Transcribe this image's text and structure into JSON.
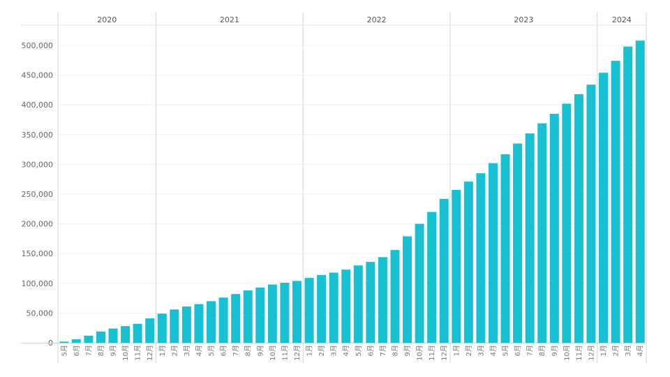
{
  "chart_data": {
    "type": "bar",
    "title": "",
    "xlabel": "",
    "ylabel": "",
    "ylim": [
      0,
      520000
    ],
    "yticks": [
      0,
      50000,
      100000,
      150000,
      200000,
      250000,
      300000,
      350000,
      400000,
      450000,
      500000
    ],
    "ytick_labels": [
      "0",
      "50,000",
      "100,000",
      "150,000",
      "200,000",
      "250,000",
      "300,000",
      "350,000",
      "400,000",
      "450,000",
      "500,000"
    ],
    "grid": true,
    "bar_color": "#17c1d1",
    "years": [
      {
        "label": "2020",
        "months": [
          "5月",
          "6月",
          "7月",
          "8月",
          "9月",
          "10月",
          "11月",
          "12月"
        ]
      },
      {
        "label": "2021",
        "months": [
          "1月",
          "2月",
          "3月",
          "4月",
          "5月",
          "6月",
          "7月",
          "8月",
          "9月",
          "10月",
          "11月",
          "12月"
        ]
      },
      {
        "label": "2022",
        "months": [
          "1月",
          "2月",
          "3月",
          "4月",
          "5月",
          "6月",
          "7月",
          "8月",
          "9月",
          "10月",
          "11月",
          "12月"
        ]
      },
      {
        "label": "2023",
        "months": [
          "1月",
          "2月",
          "3月",
          "4月",
          "5月",
          "6月",
          "7月",
          "8月",
          "9月",
          "10月",
          "11月",
          "12月"
        ]
      },
      {
        "label": "2024",
        "months": [
          "1月",
          "2月",
          "3月",
          "4月"
        ]
      }
    ],
    "values": [
      2000,
      6000,
      12000,
      19000,
      24000,
      28000,
      32000,
      41000,
      49000,
      56000,
      61000,
      65000,
      70000,
      76000,
      82000,
      88000,
      93000,
      98000,
      101000,
      104000,
      109000,
      114000,
      118000,
      123000,
      130000,
      136000,
      144000,
      156000,
      179000,
      200000,
      220000,
      242000,
      257000,
      271000,
      285000,
      302000,
      317000,
      335000,
      352000,
      369000,
      385000,
      402000,
      418000,
      434000,
      454000,
      474000,
      498000,
      508000
    ]
  }
}
